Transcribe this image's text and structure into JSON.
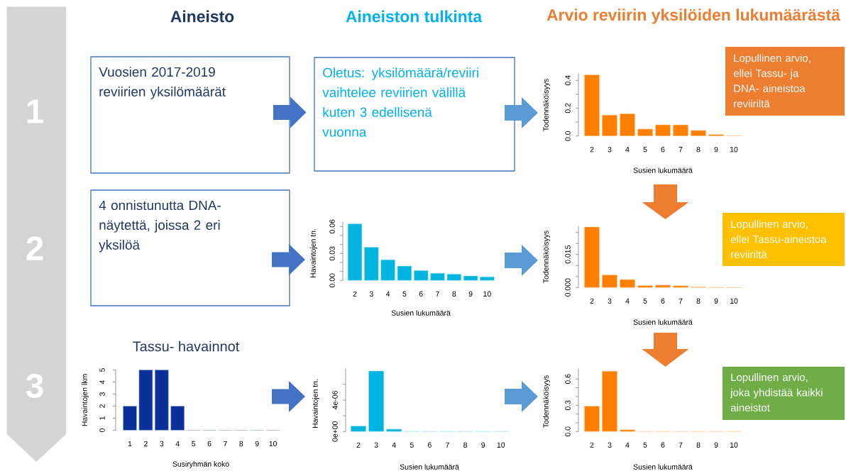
{
  "chart_data": [
    {
      "type": "other",
      "annotations": [
        "Aineisto",
        "Aineiston tulkinta",
        "Arvio reviirin yksilöiden lukumäärästä",
        "1",
        "2",
        "3",
        "Vuosien 2017-2019 reviirien yksilömäärät",
        "Oletus: yksilömäärä/reviiri vaihtelee reviirien välillä kuten 3 edellisenä vuonna",
        "4 onnistunutta DNA-näytettä, joissa 2 eri yksilöä",
        "Lopullinen arvio, ellei Tassu- ja DNA- aineistoa reviiriltä",
        "Lopullinen arvio, ellei Tassu-aineistoa reviiriltä",
        "Lopullinen arvio, joka yhdistää kaikki aineistot"
      ]
    },
    {
      "type": "bar",
      "xlabel": "Susien lukumäärä",
      "ylabel": "Todennäköisyys",
      "categories": [
        "2",
        "3",
        "4",
        "5",
        "6",
        "7",
        "8",
        "9",
        "10"
      ],
      "values": [
        0.44,
        0.15,
        0.16,
        0.05,
        0.08,
        0.08,
        0.04,
        0.01,
        0.002
      ],
      "color": "#ff7f00",
      "ylim": [
        0,
        0.45
      ],
      "yticks": [
        {
          "value": 0,
          "label": "0.0"
        },
        {
          "value": 0.1,
          "label": null
        },
        0.2,
        {
          "value": 0.3,
          "label": null
        },
        0.4
      ]
    },
    {
      "type": "bar",
      "xlabel": "Susien lukumäärä",
      "ylabel": "Havaintojen tn.",
      "categories": [
        "2",
        "3",
        "4",
        "5",
        "6",
        "7",
        "8",
        "9",
        "10"
      ],
      "values": [
        0.063,
        0.037,
        0.023,
        0.016,
        0.011,
        0.008,
        0.007,
        0.005,
        0.004
      ],
      "color": "#00b4e1",
      "ylim": [
        0,
        0.065
      ],
      "yticks": [
        {
          "value": 0,
          "label": "0.00"
        },
        {
          "value": 0.01,
          "label": null
        },
        {
          "value": 0.02,
          "label": null
        },
        0.03,
        {
          "value": 0.04,
          "label": null
        },
        {
          "value": 0.05,
          "label": null
        },
        0.06
      ]
    },
    {
      "type": "bar",
      "xlabel": "Susien lukumäärä",
      "ylabel": "Todennäköisyys",
      "categories": [
        "2",
        "3",
        "4",
        "5",
        "6",
        "7",
        "8",
        "9",
        "10"
      ],
      "values": [
        0.0275,
        0.0057,
        0.0036,
        0.0009,
        0.0011,
        0.0008,
        0.0003,
        0.0001,
        0.0001
      ],
      "color": "#ff7f00",
      "ylim": [
        0,
        0.028
      ],
      "yticks": [
        {
          "value": 0,
          "label": "0.000"
        },
        {
          "value": 0.005,
          "label": null
        },
        {
          "value": 0.01,
          "label": null
        },
        0.015,
        {
          "value": 0.02,
          "label": null
        },
        {
          "value": 0.025,
          "label": null
        }
      ]
    },
    {
      "type": "bar",
      "title": "Tassu- havainnot",
      "xlabel": "Susiryhmän koko",
      "ylabel": "Havaintojen lkm",
      "categories": [
        "1",
        "2",
        "3",
        "4",
        "5",
        "6",
        "7",
        "8",
        "9",
        "10"
      ],
      "values": [
        2,
        5,
        5,
        2,
        0,
        0,
        0,
        0,
        0,
        0
      ],
      "color": "#0a3199",
      "ylim": [
        0,
        5
      ],
      "yticks": [
        0,
        1,
        2,
        3,
        4,
        5
      ]
    },
    {
      "type": "bar",
      "xlabel": "Susien lukumäärä",
      "ylabel": "Havaintojen tn.",
      "categories": [
        "2",
        "3",
        "4",
        "5",
        "6",
        "7",
        "8",
        "9",
        "10"
      ],
      "values": [
        7e-07,
        7.7e-06,
        3e-07,
        0,
        0,
        0,
        0,
        0,
        0
      ],
      "color": "#00b4e1",
      "ylim": [
        0,
        8e-06
      ],
      "yticks": [
        {
          "value": 0,
          "label": "0e+00"
        },
        {
          "value": 2e-06,
          "label": null
        },
        {
          "value": 4e-06,
          "label": "4e-06"
        },
        {
          "value": 6e-06,
          "label": null
        }
      ]
    },
    {
      "type": "bar",
      "xlabel": "Susien lukumäärä",
      "ylabel": "Todennäköisyys",
      "categories": [
        "2",
        "3",
        "4",
        "5",
        "6",
        "7",
        "8",
        "9",
        "10"
      ],
      "values": [
        0.29,
        0.69,
        0.02,
        0,
        0,
        0,
        0,
        0,
        0
      ],
      "color": "#ff7f00",
      "ylim": [
        0,
        0.72
      ],
      "yticks": [
        {
          "value": 0,
          "label": "0.0"
        },
        {
          "value": 0.1,
          "label": null
        },
        {
          "value": 0.2,
          "label": null
        },
        0.3,
        {
          "value": 0.4,
          "label": null
        },
        {
          "value": 0.5,
          "label": null
        },
        0.6
      ]
    }
  ]
}
